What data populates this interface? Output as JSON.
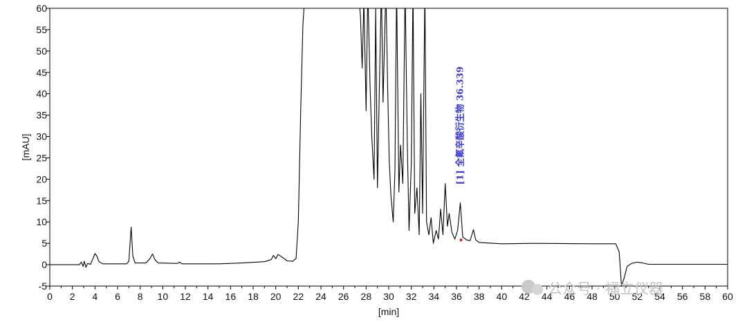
{
  "chart_data": {
    "type": "line",
    "title": "",
    "xlabel": "[min]",
    "ylabel": "[mAU]",
    "xlim": [
      0,
      60
    ],
    "ylim": [
      -5,
      60
    ],
    "x_ticks": [
      0,
      2,
      4,
      6,
      8,
      10,
      12,
      14,
      16,
      18,
      20,
      22,
      24,
      26,
      28,
      30,
      32,
      34,
      36,
      38,
      40,
      42,
      44,
      46,
      48,
      50,
      52,
      54,
      56,
      58,
      60
    ],
    "y_ticks": [
      -5,
      0,
      5,
      10,
      15,
      20,
      25,
      30,
      35,
      40,
      45,
      50,
      55,
      60
    ],
    "grid": false,
    "legend": "none",
    "series": [
      {
        "color": "#000000",
        "points": [
          [
            0,
            0
          ],
          [
            2.6,
            0
          ],
          [
            2.8,
            0.6
          ],
          [
            2.95,
            -0.4
          ],
          [
            3.05,
            0.8
          ],
          [
            3.2,
            -0.6
          ],
          [
            3.35,
            0.3
          ],
          [
            3.6,
            0.1
          ],
          [
            3.85,
            1.6
          ],
          [
            4.0,
            2.6
          ],
          [
            4.15,
            2.1
          ],
          [
            4.35,
            0.7
          ],
          [
            4.7,
            0.2
          ],
          [
            6.8,
            0.2
          ],
          [
            7.0,
            0.8
          ],
          [
            7.2,
            8.8
          ],
          [
            7.35,
            2.0
          ],
          [
            7.55,
            0.4
          ],
          [
            8.5,
            0.4
          ],
          [
            8.8,
            1.2
          ],
          [
            9.1,
            2.5
          ],
          [
            9.3,
            1.2
          ],
          [
            9.6,
            0.4
          ],
          [
            11.3,
            0.3
          ],
          [
            11.5,
            0.6
          ],
          [
            11.7,
            0.2
          ],
          [
            13.0,
            0.2
          ],
          [
            15.0,
            0.2
          ],
          [
            17.0,
            0.4
          ],
          [
            19.0,
            0.7
          ],
          [
            19.6,
            1.2
          ],
          [
            19.8,
            2.2
          ],
          [
            20.0,
            1.4
          ],
          [
            20.2,
            2.4
          ],
          [
            20.5,
            1.9
          ],
          [
            21.0,
            0.9
          ],
          [
            21.5,
            0.8
          ],
          [
            21.8,
            1.5
          ],
          [
            22.0,
            10
          ],
          [
            22.2,
            35
          ],
          [
            22.4,
            56
          ],
          [
            22.5,
            60
          ],
          [
            22.65,
            65
          ],
          [
            27.3,
            65
          ],
          [
            27.5,
            58
          ],
          [
            27.65,
            46
          ],
          [
            27.8,
            62
          ],
          [
            28.0,
            36
          ],
          [
            28.15,
            65
          ],
          [
            28.35,
            42
          ],
          [
            28.5,
            30
          ],
          [
            28.7,
            20
          ],
          [
            28.85,
            60
          ],
          [
            29.0,
            18
          ],
          [
            29.2,
            45
          ],
          [
            29.35,
            65
          ],
          [
            29.5,
            38
          ],
          [
            29.75,
            65
          ],
          [
            29.9,
            42
          ],
          [
            30.05,
            24
          ],
          [
            30.2,
            16
          ],
          [
            30.4,
            10
          ],
          [
            30.55,
            22
          ],
          [
            30.7,
            65
          ],
          [
            30.9,
            17
          ],
          [
            31.05,
            28
          ],
          [
            31.25,
            19
          ],
          [
            31.45,
            65
          ],
          [
            31.65,
            28
          ],
          [
            31.8,
            8
          ],
          [
            32.0,
            24
          ],
          [
            32.15,
            65
          ],
          [
            32.3,
            12
          ],
          [
            32.5,
            18
          ],
          [
            32.7,
            7
          ],
          [
            32.85,
            40
          ],
          [
            33.0,
            12
          ],
          [
            33.2,
            65
          ],
          [
            33.35,
            10
          ],
          [
            33.55,
            7
          ],
          [
            33.75,
            11
          ],
          [
            33.95,
            5
          ],
          [
            34.2,
            8
          ],
          [
            34.4,
            6
          ],
          [
            34.6,
            13
          ],
          [
            34.8,
            7
          ],
          [
            35.0,
            19
          ],
          [
            35.2,
            9
          ],
          [
            35.35,
            12
          ],
          [
            35.6,
            7.5
          ],
          [
            35.85,
            6
          ],
          [
            36.1,
            8
          ],
          [
            36.339,
            14.5
          ],
          [
            36.55,
            6.5
          ],
          [
            36.9,
            5.8
          ],
          [
            37.2,
            5.6
          ],
          [
            37.5,
            8.2
          ],
          [
            37.7,
            5.8
          ],
          [
            38.0,
            5.2
          ],
          [
            40.0,
            4.9
          ],
          [
            43.0,
            5.0
          ],
          [
            48.0,
            4.9
          ],
          [
            50.1,
            4.9
          ],
          [
            50.4,
            3.0
          ],
          [
            50.6,
            -5
          ],
          [
            50.85,
            -3.0
          ],
          [
            51.1,
            -0.4
          ],
          [
            51.5,
            0.3
          ],
          [
            52.0,
            0.6
          ],
          [
            52.5,
            0.4
          ],
          [
            53.0,
            0.1
          ],
          [
            60,
            0.1
          ]
        ]
      }
    ],
    "annotations": [
      {
        "text": "[1] 全氟辛酸衍生物  36.339",
        "x": 36.339,
        "y": 14.5,
        "color": "#3a3ad9"
      }
    ],
    "marker": {
      "x": 36.4,
      "y": 5.8,
      "color": "#d62020"
    }
  },
  "watermark": {
    "text": "公众号 · 福立仪器"
  }
}
